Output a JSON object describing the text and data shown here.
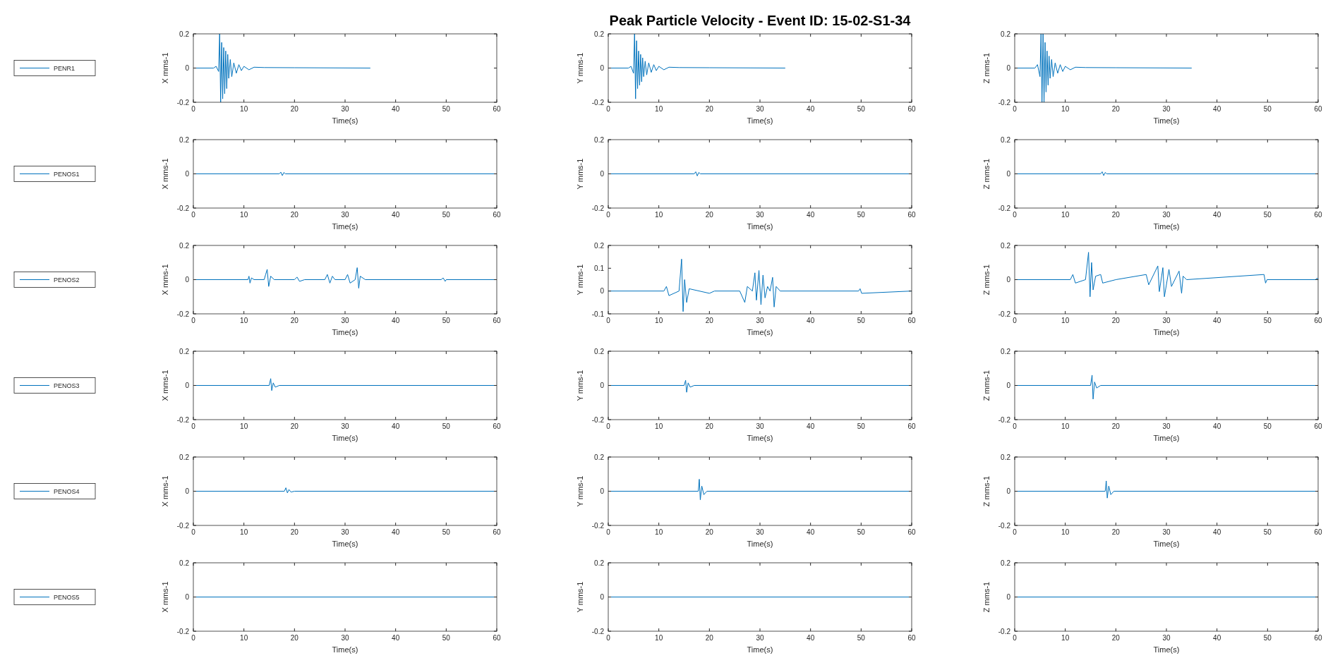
{
  "chart_data": [
    {
      "type": "line",
      "xlabel": "Time(s)",
      "ylabel": "X mms-1",
      "xlim": [
        0,
        60
      ],
      "xticks": [
        0,
        10,
        20,
        30,
        40,
        50,
        60
      ],
      "ylim": [
        -0.2,
        0.2
      ],
      "yticks": [
        -0.2,
        0,
        0.2
      ],
      "legend": "left",
      "series": [
        {
          "name": "PENR1",
          "color": "#0072bd",
          "x": [
            0,
            4,
            4.5,
            5,
            5.2,
            5.4,
            5.6,
            5.8,
            6,
            6.2,
            6.4,
            6.6,
            6.8,
            7,
            7.3,
            7.6,
            8,
            8.5,
            9,
            9.5,
            10,
            11,
            12,
            14,
            20,
            35
          ],
          "values": [
            0,
            0,
            0.01,
            -0.02,
            0.2,
            -0.2,
            0.15,
            -0.18,
            0.12,
            -0.15,
            0.1,
            -0.12,
            0.08,
            -0.06,
            0.05,
            -0.05,
            0.03,
            -0.03,
            0.02,
            -0.015,
            0.01,
            -0.01,
            0.005,
            0.003,
            0.002,
            0
          ]
        }
      ]
    },
    {
      "type": "line",
      "title": "Peak Particle Velocity - Event ID: 15-02-S1-34",
      "xlabel": "Time(s)",
      "ylabel": "Y mms-1",
      "xlim": [
        0,
        60
      ],
      "xticks": [
        0,
        10,
        20,
        30,
        40,
        50,
        60
      ],
      "ylim": [
        -0.2,
        0.2
      ],
      "yticks": [
        -0.2,
        0,
        0.2
      ],
      "series": [
        {
          "color": "#0072bd",
          "x": [
            0,
            4,
            4.5,
            5,
            5.2,
            5.4,
            5.6,
            5.8,
            6,
            6.2,
            6.4,
            6.6,
            6.8,
            7,
            7.3,
            7.6,
            8,
            8.5,
            9,
            9.5,
            10,
            11,
            12,
            14,
            20,
            35
          ],
          "values": [
            0,
            0,
            0.01,
            -0.03,
            0.2,
            -0.18,
            0.16,
            -0.12,
            0.1,
            -0.1,
            0.08,
            -0.08,
            0.06,
            -0.05,
            0.04,
            -0.04,
            0.03,
            -0.025,
            0.02,
            -0.015,
            0.01,
            -0.01,
            0.005,
            0.003,
            0.002,
            0
          ]
        }
      ]
    },
    {
      "type": "line",
      "xlabel": "Time(s)",
      "ylabel": "Z mms-1",
      "xlim": [
        0,
        60
      ],
      "xticks": [
        0,
        10,
        20,
        30,
        40,
        50,
        60
      ],
      "ylim": [
        -0.2,
        0.2
      ],
      "yticks": [
        -0.2,
        0,
        0.2
      ],
      "series": [
        {
          "color": "#0072bd",
          "x": [
            0,
            4,
            4.5,
            5,
            5.2,
            5.4,
            5.6,
            5.8,
            6,
            6.2,
            6.4,
            6.6,
            6.8,
            7,
            7.3,
            7.6,
            8,
            8.5,
            9,
            9.5,
            10,
            11,
            12,
            14,
            20,
            35
          ],
          "values": [
            0,
            0,
            0.02,
            -0.05,
            0.2,
            -0.2,
            0.2,
            -0.2,
            0.15,
            -0.14,
            0.1,
            -0.1,
            0.07,
            -0.06,
            0.05,
            -0.05,
            0.03,
            -0.03,
            0.02,
            -0.02,
            0.01,
            -0.01,
            0.005,
            0.003,
            0.002,
            0
          ]
        }
      ]
    },
    {
      "type": "line",
      "xlabel": "Time(s)",
      "ylabel": "X mms-1",
      "xlim": [
        0,
        60
      ],
      "xticks": [
        0,
        10,
        20,
        30,
        40,
        50,
        60
      ],
      "ylim": [
        -0.2,
        0.2
      ],
      "yticks": [
        -0.2,
        0,
        0.2
      ],
      "legend": "left",
      "series": [
        {
          "name": "PENOS1",
          "color": "#0072bd",
          "x": [
            0,
            17,
            17.3,
            17.6,
            17.9,
            18.2,
            60
          ],
          "values": [
            0,
            0,
            0.01,
            -0.01,
            0.008,
            0,
            0
          ]
        }
      ]
    },
    {
      "type": "line",
      "xlabel": "Time(s)",
      "ylabel": "Y mms-1",
      "xlim": [
        0,
        60
      ],
      "xticks": [
        0,
        10,
        20,
        30,
        40,
        50,
        60
      ],
      "ylim": [
        -0.2,
        0.2
      ],
      "yticks": [
        -0.2,
        0,
        0.2
      ],
      "series": [
        {
          "color": "#0072bd",
          "x": [
            0,
            17,
            17.3,
            17.6,
            17.9,
            18.2,
            60
          ],
          "values": [
            0,
            0,
            0.012,
            -0.012,
            0.008,
            0,
            0
          ]
        }
      ]
    },
    {
      "type": "line",
      "xlabel": "Time(s)",
      "ylabel": "Z mms-1",
      "xlim": [
        0,
        60
      ],
      "xticks": [
        0,
        10,
        20,
        30,
        40,
        50,
        60
      ],
      "ylim": [
        -0.2,
        0.2
      ],
      "yticks": [
        -0.2,
        0,
        0.2
      ],
      "series": [
        {
          "color": "#0072bd",
          "x": [
            0,
            17,
            17.3,
            17.6,
            17.9,
            18.2,
            60
          ],
          "values": [
            0,
            0,
            0.012,
            -0.01,
            0.008,
            0,
            0
          ]
        }
      ]
    },
    {
      "type": "line",
      "xlabel": "Time(s)",
      "ylabel": "X mms-1",
      "xlim": [
        0,
        60
      ],
      "xticks": [
        0,
        10,
        20,
        30,
        40,
        50,
        60
      ],
      "ylim": [
        -0.2,
        0.2
      ],
      "yticks": [
        -0.2,
        0,
        0.2
      ],
      "legend": "left",
      "series": [
        {
          "name": "PENOS2",
          "color": "#0072bd",
          "x": [
            0,
            10.8,
            11,
            11.2,
            11.5,
            12,
            14,
            14.3,
            14.6,
            14.9,
            15.3,
            16,
            20,
            20.5,
            21,
            22,
            26,
            26.5,
            27,
            27.5,
            28,
            30,
            30.5,
            31,
            32,
            32.4,
            32.7,
            33,
            34,
            49,
            49.4,
            49.8,
            50,
            60
          ],
          "values": [
            0,
            0,
            0.02,
            -0.02,
            0.01,
            0,
            0,
            0.03,
            0.06,
            -0.04,
            0.02,
            0,
            0,
            0.015,
            -0.01,
            0,
            0,
            0.03,
            -0.02,
            0.02,
            0,
            0,
            0.03,
            -0.02,
            0,
            0.07,
            -0.05,
            0.02,
            0,
            0,
            0.01,
            -0.01,
            0,
            0
          ]
        }
      ]
    },
    {
      "type": "line",
      "xlabel": "Time(s)",
      "ylabel": "Y mms-1",
      "xlim": [
        0,
        60
      ],
      "xticks": [
        0,
        10,
        20,
        30,
        40,
        50,
        60
      ],
      "ylim": [
        -0.1,
        0.2
      ],
      "yticks": [
        -0.1,
        0,
        0.1,
        0.2
      ],
      "series": [
        {
          "color": "#0072bd",
          "x": [
            0,
            11,
            11.5,
            12,
            14,
            14.5,
            14.8,
            15.1,
            15.5,
            16,
            20,
            21,
            26,
            27,
            27.5,
            28.5,
            29,
            29.3,
            29.8,
            30.2,
            30.6,
            31,
            31.5,
            32,
            32.5,
            32.8,
            33.2,
            34,
            49.5,
            49.8,
            50.1,
            60
          ],
          "values": [
            0,
            0,
            0.02,
            -0.02,
            0,
            0.14,
            -0.09,
            0.05,
            -0.05,
            0.01,
            -0.01,
            0,
            0,
            -0.05,
            0.02,
            0,
            0.08,
            -0.04,
            0.09,
            -0.06,
            0.07,
            -0.03,
            0.02,
            0,
            0.06,
            -0.07,
            0.02,
            0,
            0,
            0.01,
            -0.01,
            0
          ]
        }
      ]
    },
    {
      "type": "line",
      "xlabel": "Time(s)",
      "ylabel": "Z mms-1",
      "xlim": [
        0,
        60
      ],
      "xticks": [
        0,
        10,
        20,
        30,
        40,
        50,
        60
      ],
      "ylim": [
        -0.2,
        0.2
      ],
      "yticks": [
        -0.2,
        0,
        0.2
      ],
      "series": [
        {
          "color": "#0072bd",
          "x": [
            0,
            11,
            11.5,
            12,
            14,
            14.6,
            14.9,
            15.2,
            15.5,
            16,
            17,
            17.4,
            20,
            26,
            26.5,
            28.3,
            28.6,
            29.3,
            29.6,
            30.5,
            31,
            32.5,
            33,
            33.3,
            34,
            49.3,
            49.6,
            49.9,
            59.5,
            59.8,
            60
          ],
          "values": [
            0,
            0,
            0.03,
            -0.02,
            0,
            0.16,
            -0.1,
            0.1,
            -0.06,
            0.02,
            0.03,
            -0.02,
            0,
            0.03,
            -0.03,
            0.08,
            -0.07,
            0.07,
            -0.1,
            0.06,
            -0.04,
            0.05,
            -0.08,
            0.02,
            0,
            0.03,
            -0.02,
            0,
            0,
            0.01,
            0
          ]
        }
      ]
    },
    {
      "type": "line",
      "xlabel": "Time(s)",
      "ylabel": "X mms-1",
      "xlim": [
        0,
        60
      ],
      "xticks": [
        0,
        10,
        20,
        30,
        40,
        50,
        60
      ],
      "ylim": [
        -0.2,
        0.2
      ],
      "yticks": [
        -0.2,
        0,
        0.2
      ],
      "legend": "left",
      "series": [
        {
          "name": "PENOS3",
          "color": "#0072bd",
          "x": [
            0,
            15,
            15.3,
            15.5,
            15.8,
            16.2,
            17,
            60
          ],
          "values": [
            0,
            0,
            0.04,
            -0.03,
            0.015,
            -0.01,
            0,
            0
          ]
        }
      ]
    },
    {
      "type": "line",
      "xlabel": "Time(s)",
      "ylabel": "Y mms-1",
      "xlim": [
        0,
        60
      ],
      "xticks": [
        0,
        10,
        20,
        30,
        40,
        50,
        60
      ],
      "ylim": [
        -0.2,
        0.2
      ],
      "yticks": [
        -0.2,
        0,
        0.2
      ],
      "series": [
        {
          "color": "#0072bd",
          "x": [
            0,
            15,
            15.3,
            15.5,
            15.8,
            16.2,
            17,
            60
          ],
          "values": [
            0,
            0,
            0.03,
            -0.04,
            0.015,
            -0.01,
            0,
            0
          ]
        }
      ]
    },
    {
      "type": "line",
      "xlabel": "Time(s)",
      "ylabel": "Z mms-1",
      "xlim": [
        0,
        60
      ],
      "xticks": [
        0,
        10,
        20,
        30,
        40,
        50,
        60
      ],
      "ylim": [
        -0.2,
        0.2
      ],
      "yticks": [
        -0.2,
        0,
        0.2
      ],
      "series": [
        {
          "color": "#0072bd",
          "x": [
            0,
            15,
            15.3,
            15.5,
            15.8,
            16.2,
            17,
            60
          ],
          "values": [
            0,
            0,
            0.06,
            -0.08,
            0.02,
            -0.015,
            0,
            0
          ]
        }
      ]
    },
    {
      "type": "line",
      "xlabel": "Time(s)",
      "ylabel": "X mms-1",
      "xlim": [
        0,
        60
      ],
      "xticks": [
        0,
        10,
        20,
        30,
        40,
        50,
        60
      ],
      "ylim": [
        -0.2,
        0.2
      ],
      "yticks": [
        -0.2,
        0,
        0.2
      ],
      "legend": "left",
      "series": [
        {
          "name": "PENOS4",
          "color": "#0072bd",
          "x": [
            0,
            18,
            18.3,
            18.6,
            18.9,
            19.3,
            20,
            60
          ],
          "values": [
            0,
            0,
            0.02,
            -0.01,
            0.01,
            -0.005,
            0,
            0
          ]
        }
      ]
    },
    {
      "type": "line",
      "xlabel": "Time(s)",
      "ylabel": "Y mms-1",
      "xlim": [
        0,
        60
      ],
      "xticks": [
        0,
        10,
        20,
        30,
        40,
        50,
        60
      ],
      "ylim": [
        -0.2,
        0.2
      ],
      "yticks": [
        -0.2,
        0,
        0.2
      ],
      "series": [
        {
          "color": "#0072bd",
          "x": [
            0,
            17.8,
            18,
            18.2,
            18.5,
            18.9,
            19.5,
            60
          ],
          "values": [
            0,
            0,
            0.07,
            -0.05,
            0.03,
            -0.02,
            0,
            0
          ]
        }
      ]
    },
    {
      "type": "line",
      "xlabel": "Time(s)",
      "ylabel": "Z mms-1",
      "xlim": [
        0,
        60
      ],
      "xticks": [
        0,
        10,
        20,
        30,
        40,
        50,
        60
      ],
      "ylim": [
        -0.2,
        0.2
      ],
      "yticks": [
        -0.2,
        0,
        0.2
      ],
      "series": [
        {
          "color": "#0072bd",
          "x": [
            0,
            17.9,
            18.1,
            18.3,
            18.6,
            19,
            19.6,
            60
          ],
          "values": [
            0,
            0,
            0.06,
            -0.04,
            0.03,
            -0.02,
            0,
            0
          ]
        }
      ]
    },
    {
      "type": "line",
      "xlabel": "Time(s)",
      "ylabel": "X mms-1",
      "xlim": [
        0,
        60
      ],
      "xticks": [
        0,
        10,
        20,
        30,
        40,
        50,
        60
      ],
      "ylim": [
        -0.2,
        0.2
      ],
      "yticks": [
        -0.2,
        0,
        0.2
      ],
      "legend": "left",
      "series": [
        {
          "name": "PENOS5",
          "color": "#0072bd",
          "x": [
            0,
            30,
            60
          ],
          "values": [
            0,
            0,
            0
          ]
        }
      ]
    },
    {
      "type": "line",
      "xlabel": "Time(s)",
      "ylabel": "Y mms-1",
      "xlim": [
        0,
        60
      ],
      "xticks": [
        0,
        10,
        20,
        30,
        40,
        50,
        60
      ],
      "ylim": [
        -0.2,
        0.2
      ],
      "yticks": [
        -0.2,
        0,
        0.2
      ],
      "series": [
        {
          "color": "#0072bd",
          "x": [
            0,
            30,
            60
          ],
          "values": [
            0,
            0,
            0
          ]
        }
      ]
    },
    {
      "type": "line",
      "xlabel": "Time(s)",
      "ylabel": "Z mms-1",
      "xlim": [
        0,
        60
      ],
      "xticks": [
        0,
        10,
        20,
        30,
        40,
        50,
        60
      ],
      "ylim": [
        -0.2,
        0.2
      ],
      "yticks": [
        -0.2,
        0,
        0.2
      ],
      "series": [
        {
          "color": "#0072bd",
          "x": [
            0,
            30,
            60
          ],
          "values": [
            0,
            0,
            0
          ]
        }
      ]
    }
  ]
}
